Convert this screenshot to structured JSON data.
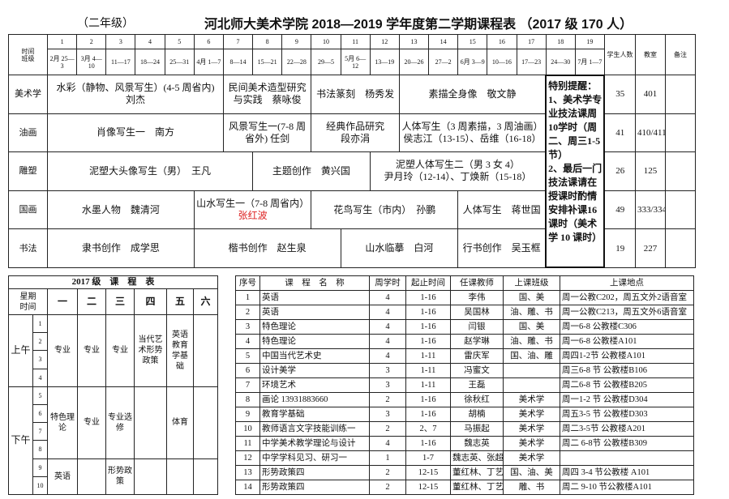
{
  "header": {
    "grade": "（二年级）",
    "title": "河北师大美术学院 2018—2019 学年度第二学期课程表 （2017 级 170 人）"
  },
  "schedule": {
    "corner": [
      "时间",
      "班级"
    ],
    "weeks": [
      1,
      2,
      3,
      4,
      5,
      6,
      7,
      8,
      9,
      10,
      11,
      12,
      13,
      14,
      15,
      16,
      17,
      18,
      19
    ],
    "dates": [
      "2月 25—3",
      "3月 4—10",
      "11—17",
      "18—24",
      "25—31",
      "4月 1—7",
      "8—14",
      "15—21",
      "22—28",
      "29—5",
      "5月 6—12",
      "13—19",
      "20—26",
      "27—2",
      "6月 3—9",
      "10—16",
      "17—23",
      "24—30",
      "7月 1—7"
    ],
    "students_header": "学生人数",
    "room_header": "教室",
    "remark_header": "备注",
    "notes": [
      "特别提醒：",
      "1、美术学专业技法课周10学时（周二、周三1-5节）",
      "2、最后一门技法课请在授课时酌情安排补课16课时（美术学 10 课时）"
    ],
    "rows": [
      {
        "name": "美术学",
        "courses": [
          [
            "水彩（静物、风景写生）(4-5 周省内)",
            "刘杰"
          ],
          [
            "民间美术造型研究",
            "与实践　蔡咏俊"
          ],
          [
            "书法篆刻　杨秀发"
          ],
          [
            "素描全身像　敬文静"
          ]
        ],
        "students": 35,
        "room": "401"
      },
      {
        "name": "油画",
        "courses": [
          [
            "肖像写生一　南方"
          ],
          [
            "风景写生一(7-8 周",
            "省外) 任剑"
          ],
          [
            "经典作品研究",
            "段亦涓"
          ],
          [
            "人体写生（3 周素描，3 周油画）",
            "侯志江（13-15）、岳维（16-18）"
          ]
        ],
        "students": 41,
        "room": "410/411"
      },
      {
        "name": "雕塑",
        "courses": [
          [
            "泥塑大头像写生（男）　王凡"
          ],
          [
            "主题创作　黄兴国"
          ],
          [
            "泥塑人体写生二（男 3 女 4）",
            "尹月玲（12-14）、丁焕新（15-18）"
          ]
        ],
        "students": 26,
        "room": "125"
      },
      {
        "name": "国画",
        "courses": [
          [
            "水墨人物　魏清河"
          ],
          [
            "山水写生一（7-8 周省内）",
            "张红波"
          ],
          [
            "花鸟写生（市内）　孙鹏"
          ],
          [
            "人体写生　蒋世国"
          ]
        ],
        "students": 49,
        "room": "333/334"
      },
      {
        "name": "书法",
        "courses": [
          [
            "隶书创作　成学思"
          ],
          [
            "楷书创作　赵生泉"
          ],
          [
            "山水临摹　白河"
          ],
          [
            "行书创作　吴玉框"
          ]
        ],
        "students": 19,
        "room": "227"
      }
    ]
  },
  "timetable": {
    "title": "2017 级　课　程　表",
    "corner": [
      "星期",
      "时间"
    ],
    "days": [
      "一",
      "二",
      "三",
      "四",
      "五",
      "六"
    ],
    "sessions": [
      "上午",
      "下午"
    ],
    "periods": [
      1,
      2,
      3,
      4,
      5,
      6,
      7,
      8,
      9,
      10
    ],
    "blocks": [
      [
        "专业",
        "特色理论",
        "英语"
      ],
      [
        "专业",
        "专业",
        null
      ],
      [
        "专业",
        "专业选修",
        "形势政策"
      ],
      [
        "当代艺术形势政策",
        null,
        null
      ],
      [
        "英语教育学基础",
        "体育",
        null
      ],
      [
        null,
        null,
        null
      ]
    ]
  },
  "course_list": {
    "headers": [
      "序号",
      "课　程　名　称",
      "周学时",
      "起止时间",
      "任课教师",
      "上课班级",
      "上课地点"
    ],
    "rows": [
      [
        1,
        "英语",
        4,
        "1-16",
        "李伟",
        "国、美",
        "周一公教C202，周五文外2语音室"
      ],
      [
        2,
        "英语",
        4,
        "1-16",
        "吴国林",
        "油、雕、书",
        "周一公教C213，周五文外6语音室"
      ],
      [
        3,
        "特色理论",
        4,
        "1-16",
        "闫银",
        "国、美",
        "周一6-8 公教楼C306"
      ],
      [
        4,
        "特色理论",
        4,
        "1-16",
        "赵学琳",
        "油、雕、书",
        "周一6-8 公教楼A101"
      ],
      [
        5,
        "中国当代艺术史",
        4,
        "1-11",
        "雷庆军",
        "国、油、雕",
        "周四1-2节 公教楼A101"
      ],
      [
        6,
        "设计美学",
        3,
        "1-11",
        "冯蜜文",
        null,
        "周三6-8 节 公教楼B106"
      ],
      [
        7,
        "环境艺术",
        3,
        "1-11",
        "王磊",
        null,
        "周二6-8 节 公教楼B205"
      ],
      [
        8,
        "画论 13931883660",
        2,
        "1-16",
        "徐秋红",
        "美术学",
        "周一1-2 节 公教楼D304"
      ],
      [
        9,
        "教育学基础",
        3,
        "1-16",
        "胡楠",
        "美术学",
        "周五3-5 节 公教楼D303"
      ],
      [
        10,
        "教师语言文字技能训练一",
        2,
        "2、7",
        "马振起",
        "美术学",
        "周二3-5节 公教楼A201"
      ],
      [
        11,
        "中学美术教学理论与设计",
        4,
        "1-16",
        "魏志英",
        "美术学",
        "周二 6-8节 公教楼B309"
      ],
      [
        12,
        "中学学科见习、研习一",
        1,
        "1-7",
        "魏志英、张超锋",
        "美术学",
        null
      ],
      [
        13,
        "形势政策四",
        2,
        "12-15",
        "董红林、丁艺宁",
        "国、油、美",
        "周四 3-4 节公教楼 A101"
      ],
      [
        14,
        "形势政策四",
        2,
        "12-15",
        "董红林、丁艺宁",
        "雕、书",
        "周二 9-10 节公教楼A101"
      ]
    ]
  }
}
